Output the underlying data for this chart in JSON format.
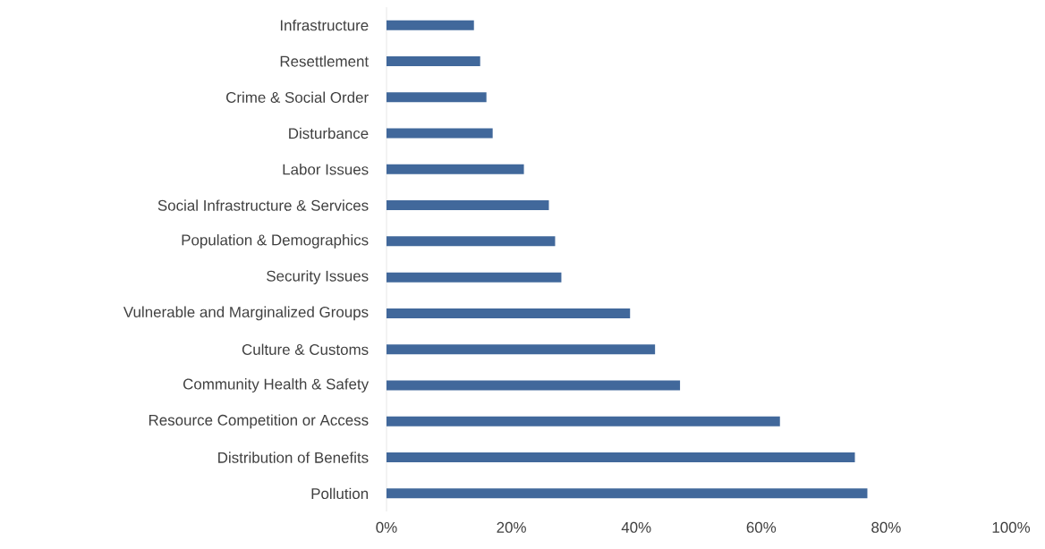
{
  "chart_data": {
    "type": "bar",
    "orientation": "horizontal",
    "categories": [
      "Infrastructure",
      "Resettlement",
      "Crime & Social Order",
      "Disturbance",
      "Labor Issues",
      "Social Infrastructure & Services",
      "Population & Demographics",
      "Security Issues",
      "Vulnerable and Marginalized Groups",
      "Culture & Customs",
      "Community Health & Safety",
      "Resource Competition or Access",
      "Distribution of Benefits",
      "Pollution"
    ],
    "values": [
      14,
      15,
      16,
      17,
      22,
      26,
      27,
      28,
      39,
      43,
      47,
      63,
      75,
      77
    ],
    "color": "#41689b",
    "xlim": [
      0,
      100
    ],
    "xticks": [
      {
        "value": 0,
        "label": "0%"
      },
      {
        "value": 20,
        "label": "20%"
      },
      {
        "value": 40,
        "label": "40%"
      },
      {
        "value": 60,
        "label": "60%"
      },
      {
        "value": 80,
        "label": "80%"
      },
      {
        "value": 100,
        "label": "100%"
      }
    ]
  }
}
